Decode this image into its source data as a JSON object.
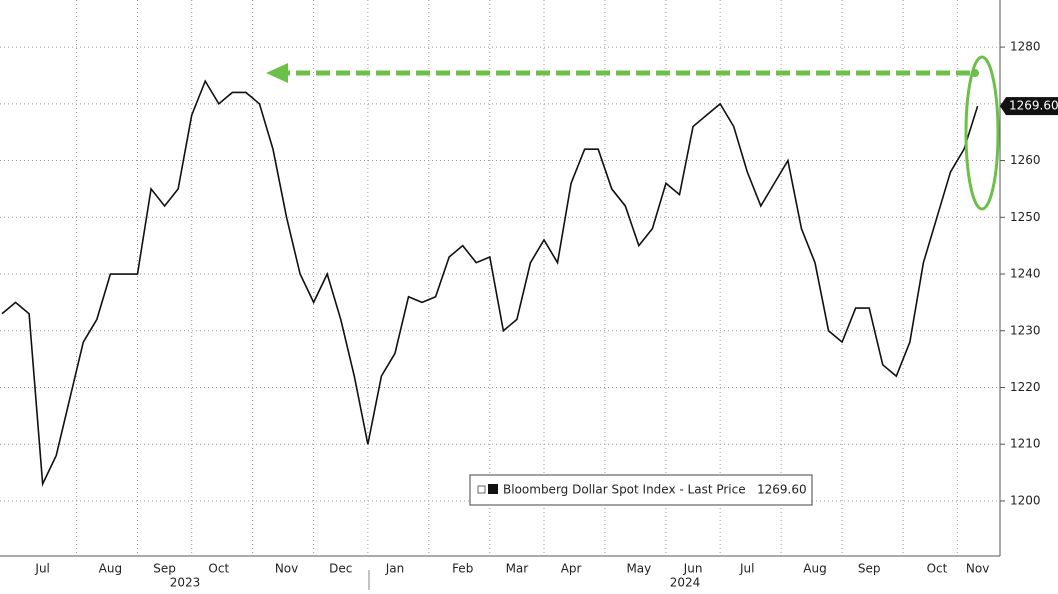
{
  "chart_data": {
    "type": "line",
    "categories": [
      null,
      null,
      null,
      "Jul",
      null,
      null,
      null,
      null,
      "Aug",
      null,
      null,
      null,
      "Sep",
      null,
      null,
      null,
      "Oct",
      null,
      null,
      null,
      null,
      "Nov",
      null,
      null,
      null,
      "Dec",
      null,
      null,
      null,
      "Jan",
      null,
      null,
      null,
      null,
      "Feb",
      null,
      null,
      null,
      "Mar",
      null,
      null,
      null,
      "Apr",
      null,
      null,
      null,
      null,
      "May",
      null,
      null,
      null,
      "Jun",
      null,
      null,
      null,
      "Jul",
      null,
      null,
      null,
      null,
      "Aug",
      null,
      null,
      null,
      "Sep",
      null,
      null,
      null,
      null,
      "Oct",
      null,
      null,
      "Nov"
    ],
    "years": [
      "2023",
      "2024"
    ],
    "series": [
      {
        "name": "Bloomberg Dollar Spot Index - Last Price",
        "color": "#111111",
        "values": [
          1233,
          1235,
          1233,
          1203,
          1208,
          1218,
          1228,
          1232,
          1240,
          1240,
          1240,
          1255,
          1252,
          1255,
          1268,
          1274,
          1270,
          1272,
          1272,
          1270,
          1262,
          1250,
          1240,
          1235,
          1240,
          1232,
          1222,
          1210,
          1222,
          1226,
          1236,
          1235,
          1236,
          1243,
          1245,
          1242,
          1243,
          1230,
          1232,
          1242,
          1246,
          1242,
          1256,
          1262,
          1262,
          1255,
          1252,
          1245,
          1248,
          1256,
          1254,
          1266,
          1268,
          1270,
          1266,
          1258,
          1252,
          1256,
          1260,
          1248,
          1242,
          1230,
          1228,
          1234,
          1234,
          1224,
          1222,
          1228,
          1242,
          1250,
          1258,
          1262,
          1269.6
        ]
      }
    ],
    "last_price": {
      "value": 1269.6,
      "label": "1269.60"
    },
    "ylim": [
      1190.3,
      1288.3
    ],
    "yticks": [
      1200,
      1210,
      1220,
      1230,
      1240,
      1250,
      1260,
      1270,
      1280
    ],
    "grid": true
  }
}
